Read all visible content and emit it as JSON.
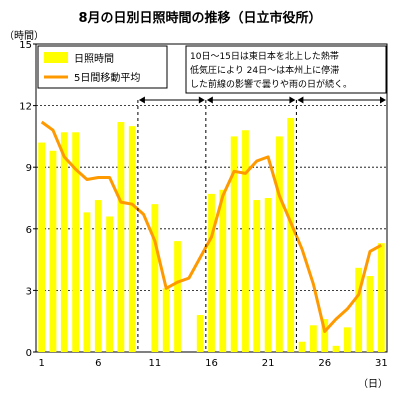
{
  "chart_data": {
    "type": "bar",
    "title": "8月の日別日照時間の推移（日立市役所）",
    "ylabel": "（時間）",
    "xlabel": "（日）",
    "ylim": [
      0,
      15
    ],
    "y_ticks": [
      0,
      3,
      6,
      9,
      12,
      15
    ],
    "x_ticks": [
      1,
      6,
      11,
      16,
      21,
      26,
      31
    ],
    "grid": "horizontal-dashed",
    "x": [
      1,
      2,
      3,
      4,
      5,
      6,
      7,
      8,
      9,
      10,
      11,
      12,
      13,
      14,
      15,
      16,
      17,
      18,
      19,
      20,
      21,
      22,
      23,
      24,
      25,
      26,
      27,
      28,
      29,
      30,
      31
    ],
    "series": [
      {
        "name": "日照時間",
        "type": "bar",
        "color": "#ffff00",
        "values": [
          10.2,
          9.8,
          10.7,
          10.7,
          6.8,
          7.4,
          6.6,
          11.2,
          11.0,
          0.0,
          7.2,
          3.1,
          5.4,
          0.0,
          1.8,
          7.7,
          7.9,
          10.5,
          10.8,
          7.4,
          7.5,
          10.5,
          11.4,
          0.5,
          1.3,
          1.6,
          0.3,
          1.2,
          4.1,
          3.7,
          5.3
        ]
      },
      {
        "name": "5日間移動平均",
        "type": "line",
        "color": "#ff9900",
        "values": [
          11.2,
          10.8,
          9.5,
          8.9,
          8.4,
          8.5,
          8.5,
          7.3,
          7.2,
          6.7,
          5.4,
          3.1,
          3.4,
          3.6,
          4.6,
          5.6,
          7.6,
          8.8,
          8.7,
          9.3,
          9.5,
          7.6,
          6.3,
          5.0,
          3.3,
          1.0,
          1.6,
          2.1,
          2.8,
          4.9,
          5.2
        ]
      }
    ],
    "legend_position": "top-left",
    "annotation": {
      "lines": [
        "10日～15日は東日本を北上した熱帯",
        "低気圧により 24日～は本州上に停滞",
        "した前線の影響で曇りや雨の日が続く。"
      ]
    },
    "period_arrows": [
      {
        "from": 9.5,
        "to": 15.5
      },
      {
        "from": 15.5,
        "to": 23.5
      },
      {
        "from": 23.5,
        "to": 31.5
      }
    ],
    "separators": [
      9.5,
      15.5,
      23.5
    ]
  }
}
